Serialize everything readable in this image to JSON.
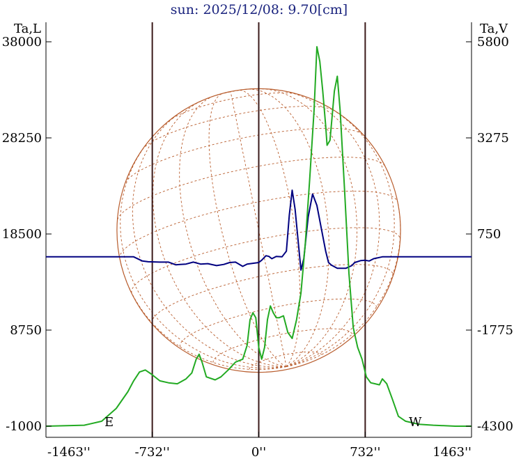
{
  "chart_data": {
    "type": "line",
    "title": "sun: 2025/12/08: 9.70[cm]",
    "left_axis": {
      "label": "Ta,L",
      "ticks": [
        -1000,
        8750,
        18500,
        28250,
        38000
      ],
      "tick_labels": [
        "-1000",
        "8750",
        "18500",
        "28250",
        "38000"
      ],
      "range": [
        -1000,
        38000
      ]
    },
    "right_axis": {
      "label": "Ta,V",
      "ticks": [
        -4300,
        -1775,
        750,
        3275,
        5800
      ],
      "tick_labels": [
        "-4300",
        "-1775",
        "750",
        "3275",
        "5800"
      ],
      "range": [
        -4300,
        5800
      ]
    },
    "x_axis": {
      "ticks": [
        -1463,
        -732,
        0,
        732,
        1463
      ],
      "tick_labels": [
        "-1463''",
        "-732''",
        "0''",
        "732''",
        "1463''"
      ],
      "range": [
        -1463,
        1463
      ]
    },
    "limb_labels": {
      "east": "E",
      "west": "W"
    },
    "solar_radius_arcsec": 975,
    "vertical_lines_arcsec": [
      -732,
      0,
      732
    ],
    "series": [
      {
        "axis": "right",
        "color": "#000080",
        "points": [
          [
            -1463,
            150
          ],
          [
            -860,
            150
          ],
          [
            -800,
            40
          ],
          [
            -760,
            20
          ],
          [
            -680,
            10
          ],
          [
            -620,
            10
          ],
          [
            -570,
            -60
          ],
          [
            -540,
            -50
          ],
          [
            -500,
            -40
          ],
          [
            -450,
            10
          ],
          [
            -400,
            -40
          ],
          [
            -350,
            -30
          ],
          [
            -290,
            -80
          ],
          [
            -240,
            -50
          ],
          [
            -200,
            0
          ],
          [
            -160,
            10
          ],
          [
            -110,
            -100
          ],
          [
            -80,
            -40
          ],
          [
            -40,
            -20
          ],
          [
            0,
            0
          ],
          [
            20,
            60
          ],
          [
            50,
            180
          ],
          [
            70,
            160
          ],
          [
            90,
            100
          ],
          [
            120,
            160
          ],
          [
            160,
            150
          ],
          [
            190,
            300
          ],
          [
            210,
            1250
          ],
          [
            230,
            1900
          ],
          [
            250,
            1400
          ],
          [
            270,
            600
          ],
          [
            290,
            -200
          ],
          [
            310,
            100
          ],
          [
            340,
            1200
          ],
          [
            370,
            1800
          ],
          [
            400,
            1500
          ],
          [
            430,
            900
          ],
          [
            460,
            300
          ],
          [
            480,
            0
          ],
          [
            500,
            -70
          ],
          [
            540,
            -150
          ],
          [
            600,
            -150
          ],
          [
            640,
            -80
          ],
          [
            660,
            0
          ],
          [
            700,
            50
          ],
          [
            730,
            60
          ],
          [
            760,
            40
          ],
          [
            790,
            100
          ],
          [
            850,
            150
          ],
          [
            1463,
            150
          ]
        ]
      },
      {
        "axis": "left",
        "color": "#22aa22",
        "points": [
          [
            -1463,
            -1000
          ],
          [
            -1200,
            -900
          ],
          [
            -1080,
            -500
          ],
          [
            -980,
            800
          ],
          [
            -900,
            2500
          ],
          [
            -860,
            3600
          ],
          [
            -820,
            4500
          ],
          [
            -780,
            4700
          ],
          [
            -740,
            4300
          ],
          [
            -680,
            3600
          ],
          [
            -620,
            3400
          ],
          [
            -560,
            3300
          ],
          [
            -500,
            3800
          ],
          [
            -460,
            4400
          ],
          [
            -430,
            5800
          ],
          [
            -410,
            6300
          ],
          [
            -390,
            5500
          ],
          [
            -360,
            4000
          ],
          [
            -300,
            3700
          ],
          [
            -260,
            4000
          ],
          [
            -210,
            4700
          ],
          [
            -160,
            5500
          ],
          [
            -110,
            5800
          ],
          [
            -80,
            7200
          ],
          [
            -60,
            9800
          ],
          [
            -40,
            10500
          ],
          [
            -20,
            10000
          ],
          [
            0,
            7000
          ],
          [
            20,
            5800
          ],
          [
            40,
            7000
          ],
          [
            60,
            9800
          ],
          [
            80,
            11200
          ],
          [
            100,
            10500
          ],
          [
            120,
            10000
          ],
          [
            140,
            10000
          ],
          [
            170,
            10200
          ],
          [
            200,
            8500
          ],
          [
            230,
            7900
          ],
          [
            260,
            9800
          ],
          [
            290,
            12500
          ],
          [
            320,
            17500
          ],
          [
            350,
            24000
          ],
          [
            380,
            31000
          ],
          [
            400,
            37500
          ],
          [
            420,
            36000
          ],
          [
            440,
            33000
          ],
          [
            460,
            29500
          ],
          [
            470,
            27500
          ],
          [
            490,
            28000
          ],
          [
            520,
            33000
          ],
          [
            540,
            34500
          ],
          [
            560,
            31000
          ],
          [
            590,
            23000
          ],
          [
            620,
            14500
          ],
          [
            650,
            9000
          ],
          [
            680,
            7000
          ],
          [
            710,
            5800
          ],
          [
            740,
            4000
          ],
          [
            770,
            3400
          ],
          [
            800,
            3300
          ],
          [
            830,
            3200
          ],
          [
            850,
            3800
          ],
          [
            880,
            3300
          ],
          [
            920,
            1700
          ],
          [
            960,
            0
          ],
          [
            1010,
            -500
          ],
          [
            1100,
            -800
          ],
          [
            1200,
            -900
          ],
          [
            1350,
            -1000
          ],
          [
            1463,
            -1000
          ]
        ]
      }
    ],
    "grid": false
  }
}
